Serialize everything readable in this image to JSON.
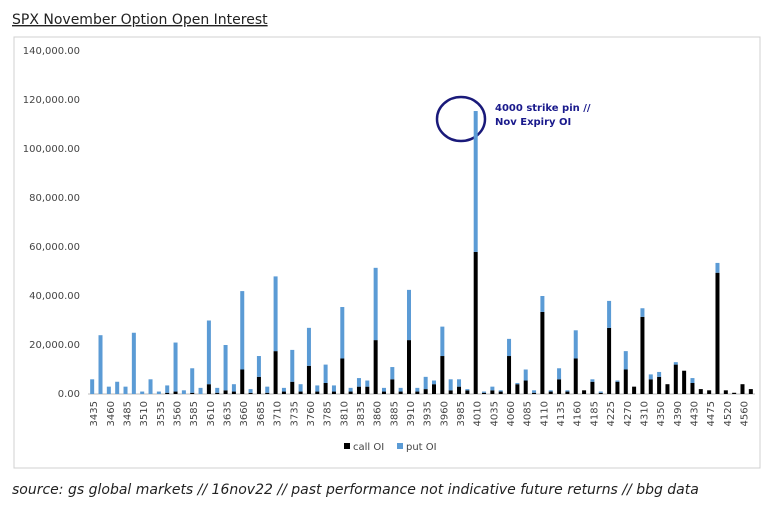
{
  "chart_data": {
    "type": "stacked_bar",
    "title": "SPX November Option Open Interest",
    "annotation": [
      "4000 strike pin //",
      "Nov Expiry OI"
    ],
    "source": "source: gs global markets // 16nov22 // past performance not indicative future returns  // bbg data",
    "categories": [
      "3435",
      null,
      "3460",
      null,
      "3485",
      null,
      "3510",
      null,
      "3535",
      null,
      "3560",
      null,
      "3585",
      null,
      "3610",
      null,
      "3635",
      null,
      "3660",
      null,
      "3685",
      null,
      "3710",
      null,
      "3735",
      null,
      "3760",
      null,
      "3785",
      null,
      "3810",
      null,
      "3835",
      null,
      "3860",
      null,
      "3885",
      null,
      "3910",
      null,
      "3935",
      null,
      "3960",
      null,
      "3985",
      null,
      "4010",
      null,
      "4035",
      null,
      "4060",
      null,
      "4085",
      null,
      "4110",
      null,
      "4135",
      null,
      "4160",
      null,
      "4185",
      null,
      "4225",
      null,
      "4270",
      null,
      "4310",
      null,
      "4350",
      null,
      "4390",
      null,
      "4430",
      null,
      "4475",
      null,
      "4520",
      null,
      "4560",
      null
    ],
    "series": [
      {
        "name": "call OI",
        "color": "#000000",
        "values": [
          0,
          0,
          0,
          0,
          0,
          0,
          0,
          0,
          0,
          500,
          1000,
          0,
          500,
          0,
          4000,
          500,
          1500,
          1000,
          10000,
          500,
          7000,
          500,
          17500,
          1000,
          5000,
          1000,
          11500,
          1000,
          4500,
          1000,
          14500,
          1000,
          3000,
          3000,
          22000,
          1000,
          6000,
          1000,
          22000,
          1000,
          2000,
          4000,
          15500,
          1500,
          3000,
          1500,
          58000,
          500,
          1500,
          1000,
          15500,
          4000,
          5500,
          500,
          33500,
          1000,
          6000,
          1000,
          14500,
          1500,
          5000,
          500,
          27000,
          5000,
          10000,
          3000,
          31500,
          6000,
          7000,
          4000,
          12000,
          9500,
          4500,
          2000,
          1500,
          49500,
          1500,
          500,
          4000,
          2000
        ]
      },
      {
        "name": "put OI",
        "color": "#5b9bd5",
        "values": [
          6000,
          24000,
          3000,
          5000,
          3000,
          25000,
          1000,
          6000,
          1000,
          3000,
          20000,
          1500,
          10000,
          2500,
          26000,
          2000,
          18500,
          3000,
          32000,
          1500,
          8500,
          2500,
          30500,
          1500,
          13000,
          3000,
          15500,
          2500,
          7500,
          2500,
          21000,
          1500,
          3500,
          2500,
          29500,
          1500,
          5000,
          1500,
          20500,
          1500,
          5000,
          1500,
          12000,
          4500,
          3000,
          500,
          57500,
          500,
          1500,
          500,
          7000,
          500,
          4500,
          1000,
          6500,
          500,
          4500,
          500,
          11500,
          0,
          1000,
          500,
          11000,
          500,
          7500,
          0,
          3500,
          2000,
          2000,
          0,
          1000,
          0,
          2000,
          0,
          0,
          4000,
          0,
          0,
          0,
          0
        ]
      }
    ],
    "ylim": [
      0,
      140000
    ],
    "yticks": [
      {
        "value": 0,
        "label": "0.00"
      },
      {
        "value": 20000,
        "label": "20,000.00"
      },
      {
        "value": 40000,
        "label": "40,000.00"
      },
      {
        "value": 60000,
        "label": "60,000.00"
      },
      {
        "value": 80000,
        "label": "80,000.00"
      },
      {
        "value": 100000,
        "label": "100,000.00"
      },
      {
        "value": 120000,
        "label": "120,000.00"
      },
      {
        "value": 140000,
        "label": "140,000.00"
      }
    ],
    "grid": false
  }
}
